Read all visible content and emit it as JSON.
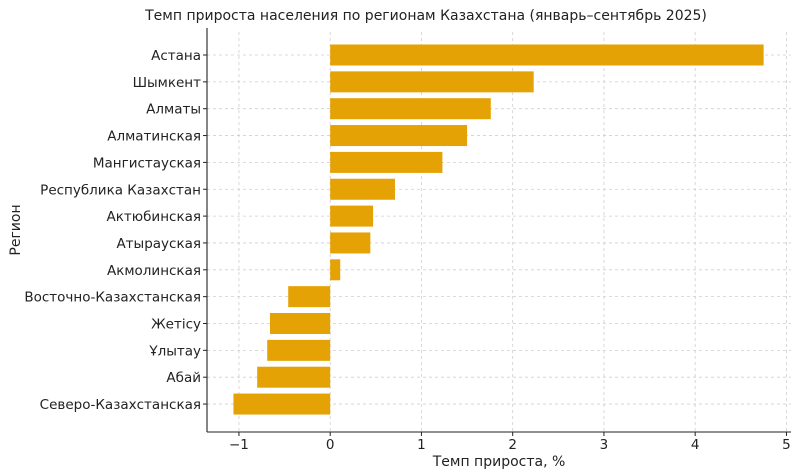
{
  "chart_data": {
    "type": "bar",
    "orientation": "horizontal",
    "title": "Темп прироста населения по регионам Казахстана (январь–сентябрь 2025)",
    "xlabel": "Темп прироста, %",
    "ylabel": "Регион",
    "categories": [
      "Астана",
      "Шымкент",
      "Алматы",
      "Алматинская",
      "Мангистауская",
      "Республика Казахстан",
      "Актюбинская",
      "Атырауская",
      "Акмолинская",
      "Восточно-Казахстанская",
      "Жетісу",
      "Ұлытау",
      "Абай",
      "Северо-Казахстанская"
    ],
    "values": [
      4.75,
      2.23,
      1.76,
      1.5,
      1.23,
      0.71,
      0.47,
      0.44,
      0.11,
      -0.46,
      -0.66,
      -0.69,
      -0.8,
      -1.06
    ],
    "xlim": [
      -1.35,
      5.05
    ],
    "xticks": [
      -1,
      0,
      1,
      2,
      3,
      4,
      5
    ],
    "xtick_labels": [
      "−1",
      "0",
      "1",
      "2",
      "3",
      "4",
      "5"
    ],
    "grid": true,
    "bar_color": "#E5A205"
  }
}
